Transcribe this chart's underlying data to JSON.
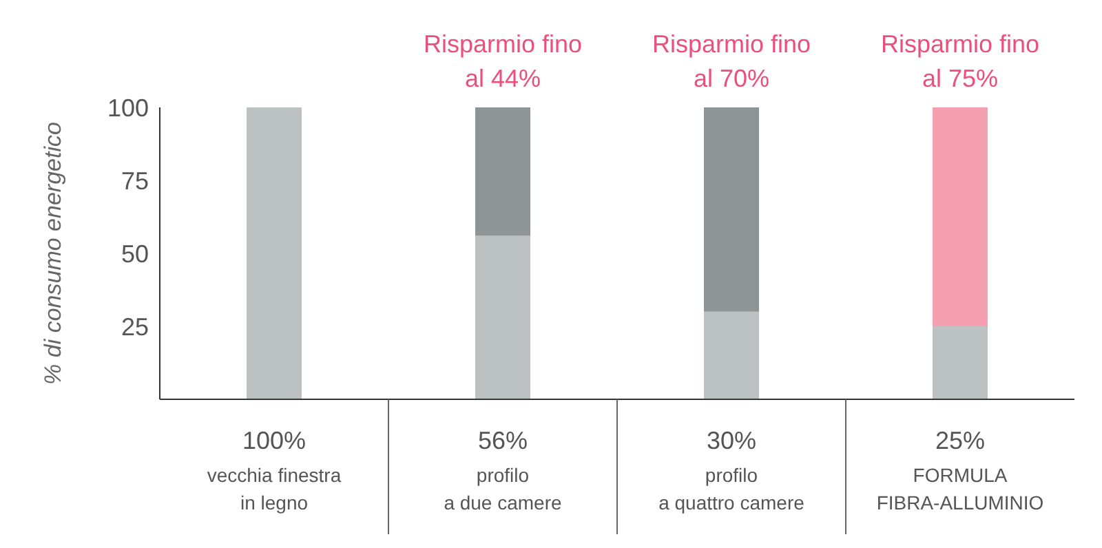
{
  "chart_data": {
    "type": "bar",
    "stacked": true,
    "ylabel": "% di consumo energetico",
    "categories": [
      "vecchia finestra\nin legno",
      "profilo\na due camere",
      "profilo\na quattro camere",
      "FORMULA\nFIBRA-ALLUMINIO"
    ],
    "series": [
      {
        "color": "#bcc1c2",
        "values": [
          100,
          56,
          30,
          25
        ],
        "value_labels": [
          "100%",
          "56%",
          "30%",
          "25%"
        ]
      },
      {
        "colors": [
          "#8e9596",
          "#8e9596",
          "#8e9596",
          "#f4a0b0"
        ],
        "values": [
          null,
          44,
          70,
          75
        ],
        "value_labels": [
          null,
          "Risparmio fino\nal 44%",
          "Risparmio fino\nal 70%",
          "Risparmio fino\nal 75%"
        ]
      }
    ],
    "ylim": [
      0,
      100
    ],
    "yticks": [
      25,
      50,
      75,
      100
    ],
    "grid": false,
    "legend": false
  }
}
